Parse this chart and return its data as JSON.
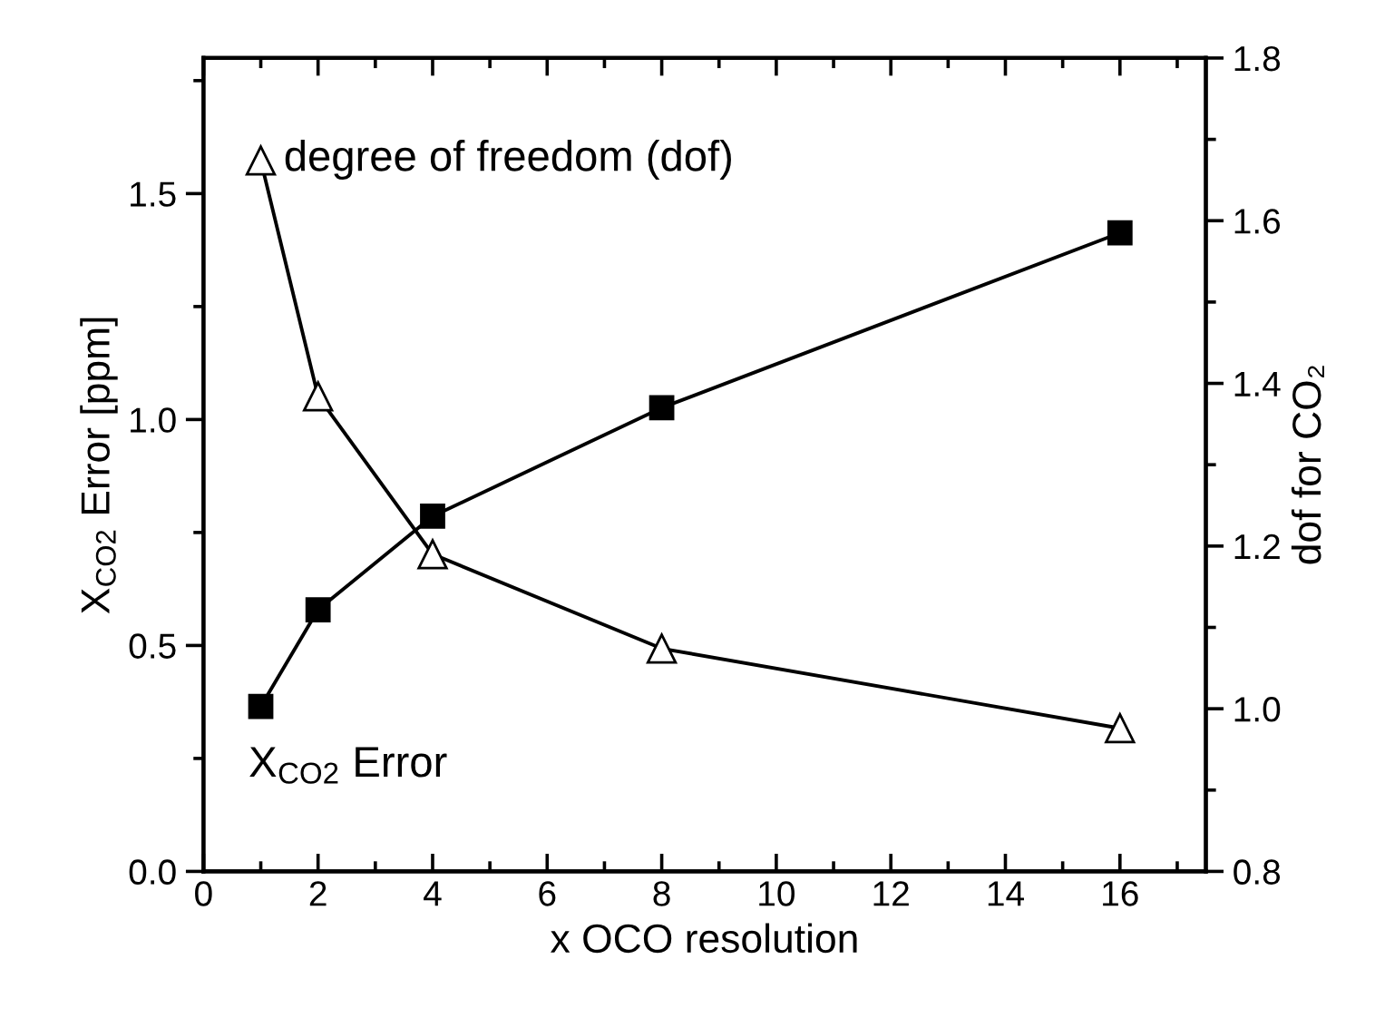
{
  "chart_data": {
    "type": "line",
    "xlabel": "x OCO resolution",
    "ylabel": "X$_{CO2}$ Error [ppm]",
    "y2label": "dof for CO₂",
    "x": [
      1,
      2,
      4,
      8,
      16
    ],
    "series": [
      {
        "color": "#000000",
        "marker": "square",
        "values": [
          0.365,
          0.579,
          0.786,
          1.026,
          1.413
        ]
      },
      {
        "color": "#000000",
        "marker": "triangle",
        "axis": "y2",
        "values": [
          1.674,
          1.384,
          1.19,
          1.074,
          0.976
        ]
      }
    ],
    "xlim": [
      0,
      17.5
    ],
    "xticks": [
      0,
      2,
      4,
      6,
      8,
      10,
      12,
      14,
      16
    ],
    "ylim": [
      0,
      1.8
    ],
    "yticks": [
      {
        "value": 0,
        "label": "0.0"
      },
      {
        "value": 0.5,
        "label": "0.5"
      },
      {
        "value": 1.0,
        "label": "1.0"
      },
      {
        "value": 1.5,
        "label": "1.5"
      }
    ],
    "y2lim": [
      0.8,
      1.8
    ],
    "y2ticks": [
      0.8,
      {
        "value": 1.0,
        "label": "1.0"
      },
      1.2,
      1.4,
      1.6,
      1.8
    ],
    "annotations": [
      "degree of freedom (dof)",
      "X$_{CO2}$ Error"
    ],
    "grid": false,
    "legend": false,
    "line_style": "solid"
  }
}
